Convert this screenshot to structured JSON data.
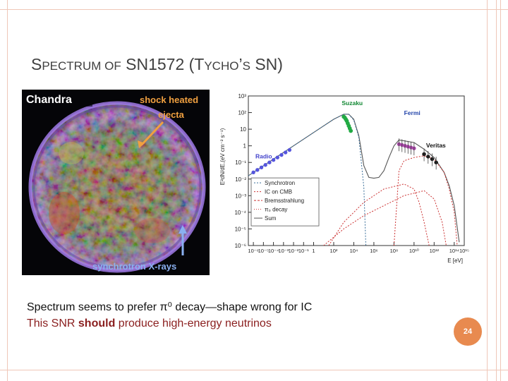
{
  "slide": {
    "title_big_1": "S",
    "title_small_1": "PECTRUM OF",
    "title_big_2": " SN1572 (T",
    "title_small_2": "YCHO",
    "title_big_3": "’",
    "title_small_3": "S",
    "title_big_4": " SN)",
    "caption_line1": "Spectrum seems to prefer π⁰ decay—shape wrong for IC",
    "caption_line2_pre": "This SNR ",
    "caption_line2_bold": "should",
    "caption_line2_post": " produce high-energy neutrinos",
    "page_number": "24"
  },
  "image": {
    "title": "Chandra",
    "annotation_top": "shock heated",
    "annotation_top2": "ejecta",
    "annotation_bottom": "synchrotron X-rays"
  },
  "chart_data": {
    "type": "scatter",
    "ylabel": "E²dN/dE,(eV cm⁻² s⁻¹)",
    "xlabel": "E [eV]",
    "x_ticks": [
      "10⁻⁶",
      "10⁻⁵",
      "10⁻⁴",
      "10⁻³",
      "10⁻²",
      "10⁻¹",
      "1",
      "10²",
      "10⁴",
      "10⁶",
      "10⁸",
      "10¹⁰",
      "10¹²",
      "10¹⁴",
      "10¹⁵"
    ],
    "y_ticks": [
      "10³",
      "10²",
      "10",
      "1",
      "10⁻¹",
      "10⁻²",
      "10⁻³",
      "10⁻⁴",
      "10⁻⁵",
      "10⁻⁶"
    ],
    "xlim_log10": [
      -6.5,
      15
    ],
    "ylim_log10": [
      -6,
      3
    ],
    "labels": {
      "radio": "Radio",
      "suzaku": "Suzaku",
      "fermi": "Fermi",
      "veritas": "Veritas"
    },
    "legend": [
      "Synchrotron",
      "IC on CMB",
      "Bremsstrahlung",
      "π₀ decay",
      "Sum"
    ],
    "legend_placement": "lower-left",
    "series": [
      {
        "name": "Radio",
        "color": "#5555dd",
        "x": [
          -6.0,
          -5.6,
          -5.2,
          -4.8,
          -4.4,
          -4.0,
          -3.6,
          -3.2,
          -2.8,
          -2.4
        ],
        "y": [
          -1.6,
          -1.45,
          -1.3,
          -1.15,
          -1.0,
          -0.85,
          -0.7,
          -0.55,
          -0.4,
          -0.25
        ]
      },
      {
        "name": "Suzaku",
        "color": "#22aa44",
        "x": [
          3.0,
          3.1,
          3.2,
          3.3,
          3.4,
          3.5,
          3.6,
          3.7
        ],
        "y": [
          1.75,
          1.7,
          1.6,
          1.5,
          1.35,
          1.2,
          1.05,
          0.9
        ]
      },
      {
        "name": "Fermi",
        "color": "#aa44aa",
        "x": [
          8.5,
          8.8,
          9.1,
          9.4,
          9.7,
          10.0
        ],
        "y": [
          0.1,
          0.05,
          0.0,
          -0.05,
          -0.1,
          -0.15
        ]
      },
      {
        "name": "Veritas",
        "color": "#111111",
        "x": [
          11.0,
          11.4,
          11.8,
          12.2
        ],
        "y": [
          -0.5,
          -0.65,
          -0.8,
          -1.0
        ]
      }
    ],
    "curves": [
      {
        "name": "Sum",
        "style": "solid",
        "color": "#555555",
        "x": [
          -6.5,
          -4,
          -2,
          0,
          1,
          2,
          3,
          3.5,
          4,
          4.5,
          5,
          5.5,
          6,
          6.5,
          7,
          7.5,
          8,
          8.5,
          9,
          9.5,
          10,
          11,
          12,
          13,
          13.5,
          14,
          14.5
        ],
        "y": [
          -1.8,
          -0.8,
          0,
          0.8,
          1.2,
          1.6,
          1.9,
          1.9,
          1.6,
          0.6,
          -1.2,
          -1.9,
          -1.95,
          -1.9,
          -1.5,
          -0.7,
          0.0,
          0.35,
          0.3,
          0.25,
          0.2,
          -0.2,
          -0.7,
          -1.6,
          -2.4,
          -3.6,
          -5.8
        ]
      },
      {
        "name": "Synchrotron",
        "style": "dotted",
        "color": "#3a6f9a",
        "x": [
          -6.5,
          -4,
          -2,
          0,
          1,
          2,
          3,
          3.5,
          4,
          4.5,
          5,
          5.2
        ],
        "y": [
          -1.8,
          -0.8,
          0,
          0.8,
          1.2,
          1.6,
          1.9,
          1.9,
          1.55,
          0.5,
          -2.5,
          -6
        ]
      },
      {
        "name": "IC on CMB",
        "style": "dotted",
        "color": "#cc3333",
        "x": [
          1.5,
          3,
          5,
          7,
          9,
          10,
          10.5,
          11,
          11.5
        ],
        "y": [
          -6,
          -4.6,
          -3.4,
          -2.6,
          -2.3,
          -2.6,
          -3.4,
          -4.6,
          -6
        ]
      },
      {
        "name": "Bremsstrahlung",
        "style": "dotted",
        "color": "#cc3333",
        "x": [
          1.0,
          3,
          5,
          7,
          9,
          11,
          12,
          12.8,
          13.2
        ],
        "y": [
          -6,
          -5.0,
          -4.2,
          -3.6,
          -3.0,
          -2.7,
          -3.2,
          -4.6,
          -6
        ]
      },
      {
        "name": "π₀ decay",
        "style": "dotted",
        "color": "#cc3333",
        "x": [
          8.0,
          8.5,
          9,
          10,
          11,
          12,
          13,
          13.5,
          14,
          14.3
        ],
        "y": [
          -6,
          -1.5,
          -0.9,
          -0.7,
          -0.6,
          -0.8,
          -1.6,
          -2.6,
          -4,
          -6
        ]
      }
    ]
  }
}
